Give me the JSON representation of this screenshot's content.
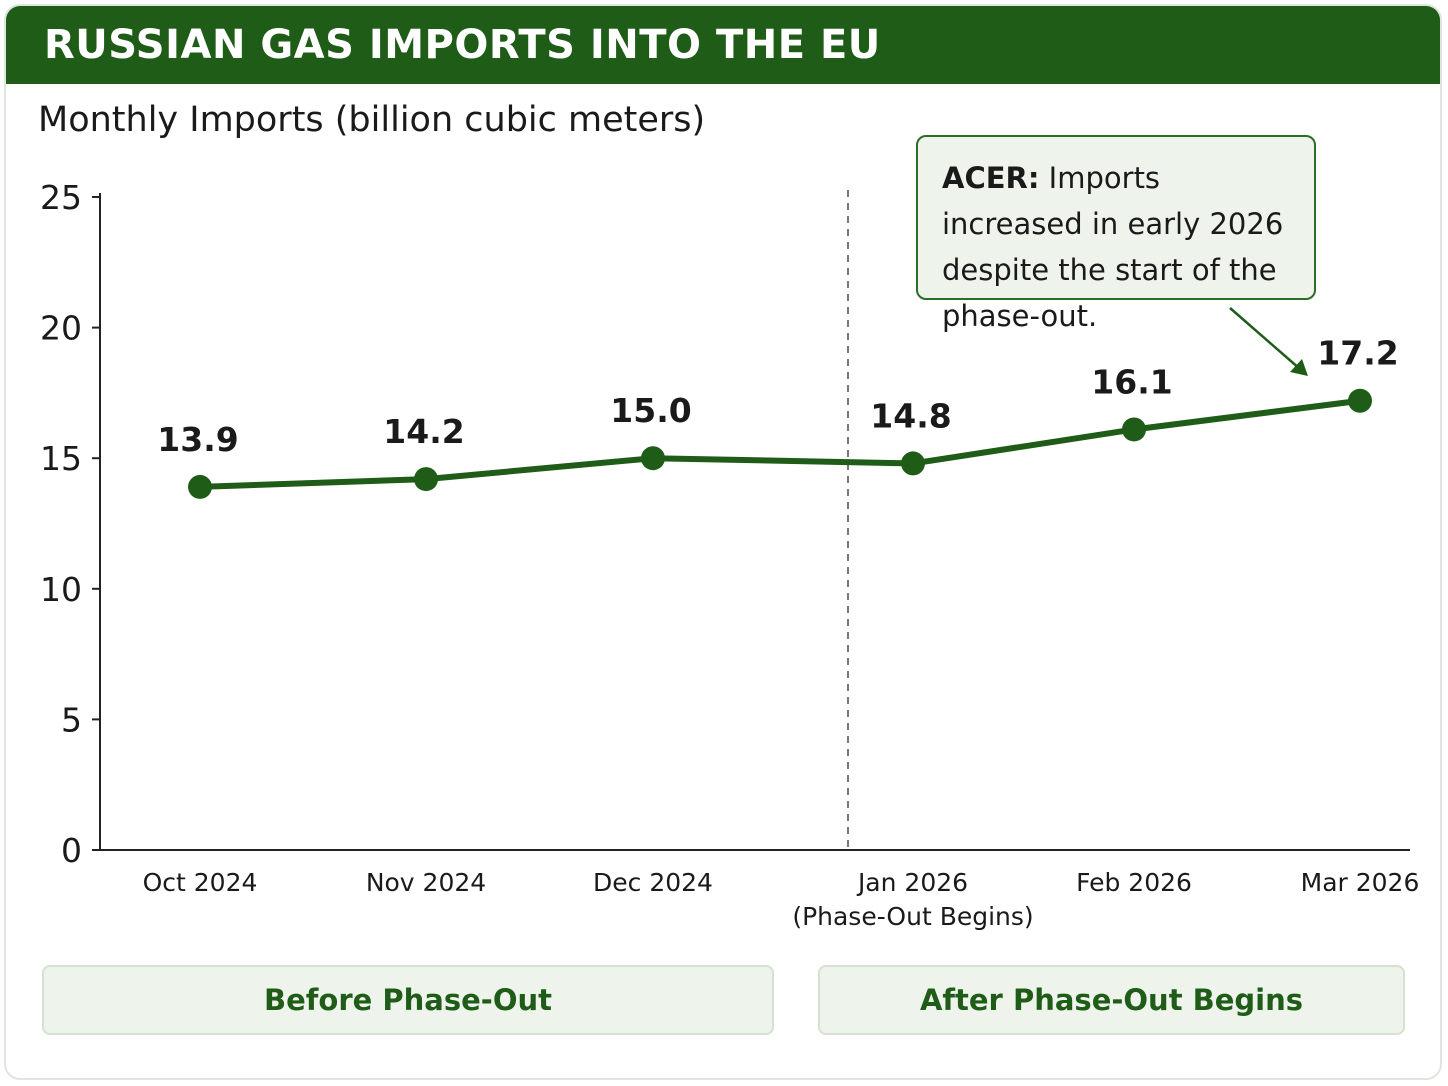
{
  "header": {
    "title": "RUSSIAN GAS IMPORTS INTO THE EU"
  },
  "colors": {
    "banner": "#1f5c18",
    "line": "#1f5c18",
    "annotation_bg": "#eef4ec",
    "annotation_border": "#2d6e27"
  },
  "chart_data": {
    "type": "line",
    "title": "Monthly Imports (billion cubic meters)",
    "xlabel": "",
    "ylabel": "",
    "ylim": [
      0,
      25
    ],
    "yticks": [
      "0",
      "5",
      "10",
      "15",
      "20",
      "25"
    ],
    "grid": false,
    "categories": [
      [
        "Oct 2024"
      ],
      [
        "Nov 2024"
      ],
      [
        "Dec 2024"
      ],
      [
        "Jan 2026",
        "(Phase-Out Begins)"
      ],
      [
        "Feb 2026"
      ],
      [
        "Mar 2026"
      ]
    ],
    "series": [
      {
        "values": [
          13.9,
          14.2,
          15.0,
          14.8,
          16.1,
          17.2
        ],
        "labels": [
          "13.9",
          "14.2",
          "15.0",
          "14.8",
          "16.1",
          "17.2"
        ]
      }
    ],
    "divider_after_category": "Dec 2024",
    "annotation": {
      "bold": "ACER:",
      "text": " Imports increased in early 2026 despite the start of the phase-out.",
      "points_to": "Mar 2026"
    }
  },
  "phases": {
    "before": "Before Phase-Out",
    "after": "After Phase-Out Begins"
  }
}
